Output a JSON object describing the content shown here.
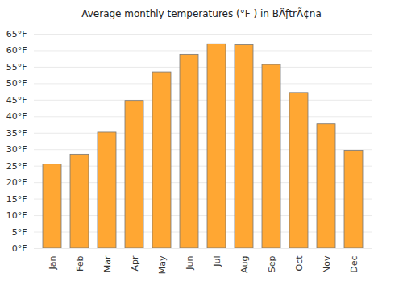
{
  "chart_data": {
    "type": "bar",
    "title": "Average monthly temperatures (°F ) in BÄƒtrÃ¢na",
    "categories": [
      "Jan",
      "Feb",
      "Mar",
      "Apr",
      "May",
      "Jun",
      "Jul",
      "Aug",
      "Sep",
      "Oct",
      "Nov",
      "Dec"
    ],
    "values": [
      25.5,
      28.5,
      35.2,
      44.8,
      53.5,
      58.8,
      62.0,
      61.7,
      55.7,
      47.2,
      37.7,
      29.7
    ],
    "color": "#ffa733",
    "ylim": [
      0,
      65
    ],
    "yticks": [
      {
        "value": 0,
        "label": "0°F"
      },
      {
        "value": 5,
        "label": "5°F"
      },
      {
        "value": 10,
        "label": "10°F"
      },
      {
        "value": 15,
        "label": "15°F"
      },
      {
        "value": 20,
        "label": "20°F"
      },
      {
        "value": 25,
        "label": "25°F"
      },
      {
        "value": 30,
        "label": "30°F"
      },
      {
        "value": 35,
        "label": "35°F"
      },
      {
        "value": 40,
        "label": "40°F"
      },
      {
        "value": 45,
        "label": "45°F"
      },
      {
        "value": 50,
        "label": "50°F"
      },
      {
        "value": 55,
        "label": "55°F"
      },
      {
        "value": 60,
        "label": "60°F"
      },
      {
        "value": 65,
        "label": "65°F"
      }
    ],
    "grid": true
  }
}
